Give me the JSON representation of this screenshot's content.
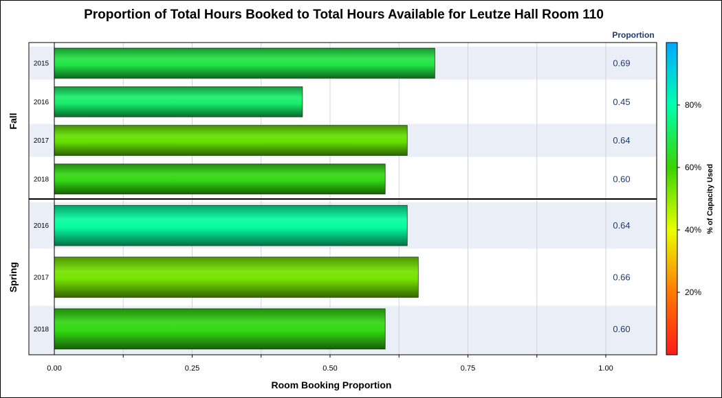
{
  "chart_data": {
    "type": "bar",
    "orientation": "horizontal",
    "title": "Proportion of Total Hours Booked to Total Hours Available for Leutze Hall Room 110",
    "xlabel": "Room Booking Proportion",
    "value_column_header": "Proportion",
    "xlim": [
      0,
      1.09
    ],
    "x_ticks": [
      "0.00",
      "0.25",
      "0.50",
      "0.75",
      "1.00"
    ],
    "x_tick_values": [
      0,
      0.25,
      0.5,
      0.75,
      1.0
    ],
    "grid": true,
    "groups": [
      {
        "name": "Fall",
        "rows": [
          {
            "label": "2015",
            "value": 0.69,
            "value_label": "0.69",
            "color_pct": 68
          },
          {
            "label": "2016",
            "value": 0.45,
            "value_label": "0.45",
            "color_pct": 72
          },
          {
            "label": "2017",
            "value": 0.64,
            "value_label": "0.64",
            "color_pct": 55
          },
          {
            "label": "2018",
            "value": 0.6,
            "value_label": "0.60",
            "color_pct": 62
          }
        ]
      },
      {
        "name": "Spring",
        "rows": [
          {
            "label": "2016",
            "value": 0.64,
            "value_label": "0.64",
            "color_pct": 78
          },
          {
            "label": "2017",
            "value": 0.66,
            "value_label": "0.66",
            "color_pct": 53
          },
          {
            "label": "2018",
            "value": 0.6,
            "value_label": "0.60",
            "color_pct": 62
          }
        ]
      }
    ],
    "colorbar": {
      "title": "% of Capacity Used",
      "ticks": [
        "20%",
        "40%",
        "60%",
        "80%"
      ],
      "tick_values": [
        20,
        40,
        60,
        80
      ],
      "range": [
        0,
        100
      ],
      "colors": [
        "#ff1a1a",
        "#ff7a00",
        "#e8ff00",
        "#39d400",
        "#00ffb0",
        "#00a8ff"
      ]
    }
  }
}
